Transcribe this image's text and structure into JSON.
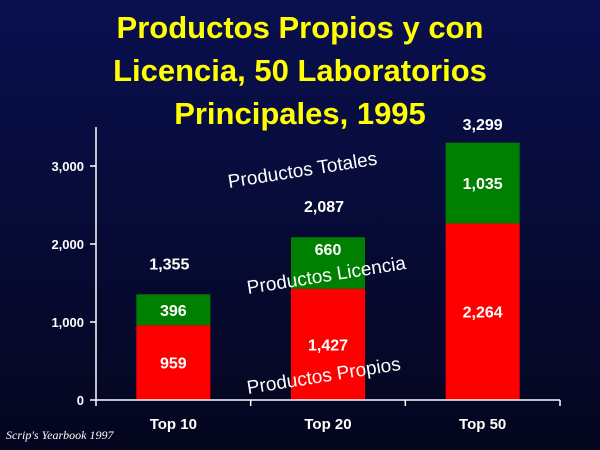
{
  "title": {
    "line1": "Productos Propios y con",
    "line2": "Licencia, 50 Laboratorios",
    "line3": "Principales, 1995"
  },
  "source": "Scrip's Yearbook 1997",
  "colors": {
    "propios": "#ff0000",
    "licencia": "#008000",
    "axis": "#ffffff"
  },
  "chart_data": {
    "type": "bar",
    "stacked": true,
    "categories": [
      "Top 10",
      "Top 20",
      "Top 50"
    ],
    "series": [
      {
        "name": "Productos Propios",
        "values": [
          959,
          1427,
          2264
        ],
        "value_labels": [
          "959",
          "1,427",
          "2,264"
        ]
      },
      {
        "name": "Productos Licencia",
        "values": [
          396,
          660,
          1035
        ],
        "value_labels": [
          "396",
          "660",
          "1,035"
        ]
      }
    ],
    "totals": [
      1355,
      2087,
      3299
    ],
    "total_labels": [
      "1,355",
      "2,087",
      "3,299"
    ],
    "total_series_name": "Productos Totales",
    "ylim": [
      0,
      3500
    ],
    "yticks": [
      0,
      1000,
      2000,
      3000
    ],
    "ytick_labels": [
      "0",
      "1,000",
      "2,000",
      "3,000"
    ],
    "grid": false,
    "legend": "none"
  }
}
